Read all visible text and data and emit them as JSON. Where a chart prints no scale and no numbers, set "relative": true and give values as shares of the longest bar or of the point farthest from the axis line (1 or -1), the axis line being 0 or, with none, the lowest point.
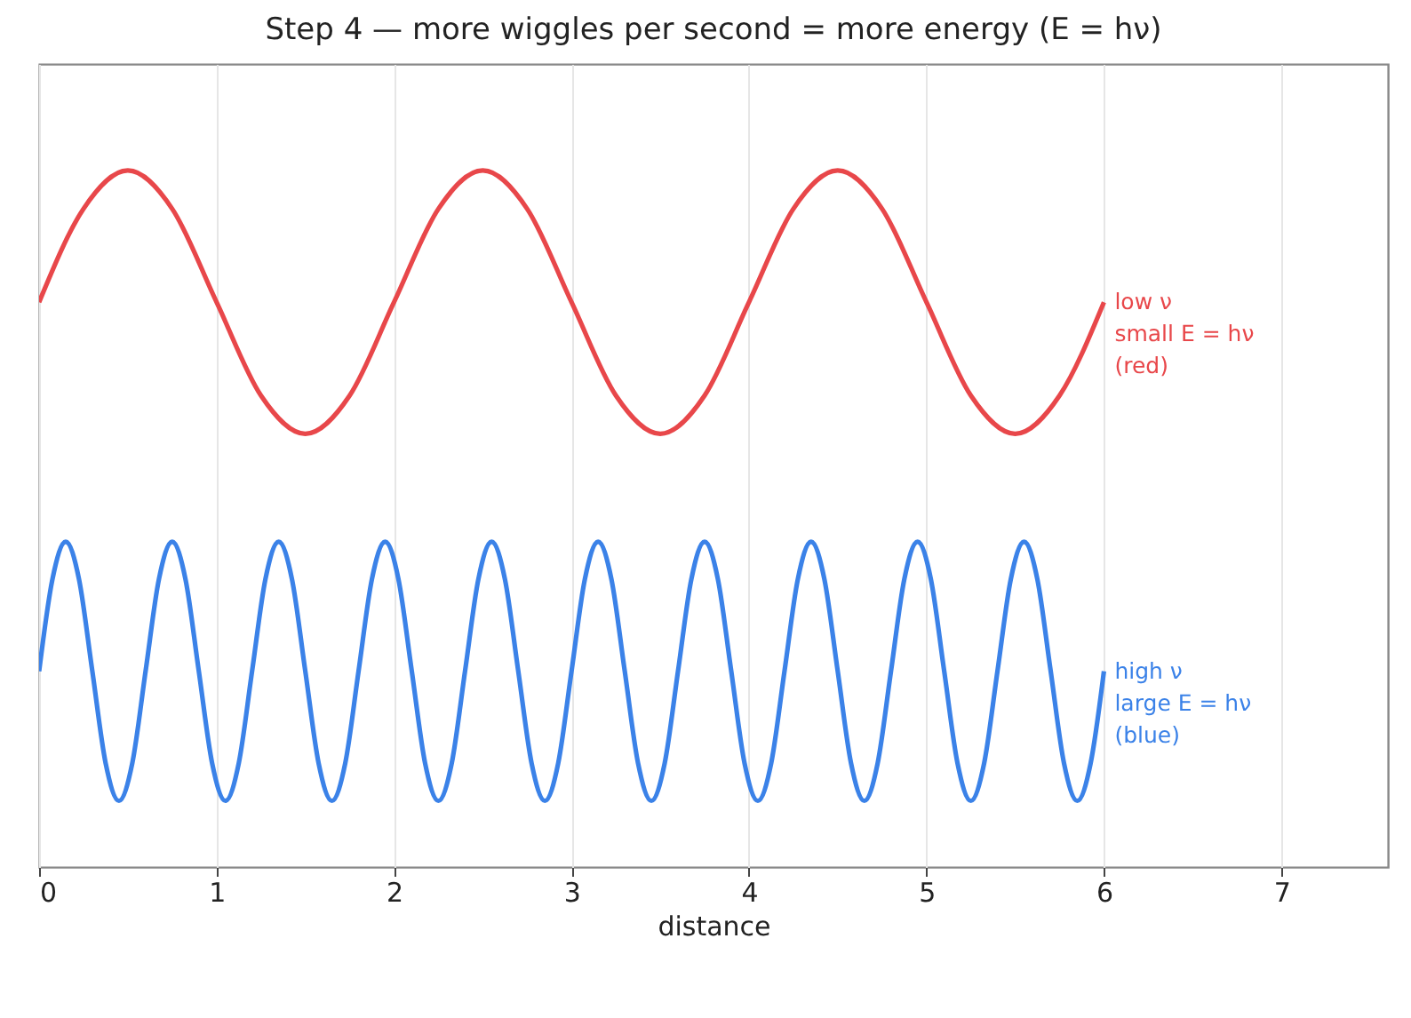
{
  "chart_data": {
    "type": "line",
    "title": "Step 4 — more wiggles per second = more energy (E = hν)",
    "xlabel": "distance",
    "relative": true,
    "xlim": [
      0,
      7.6
    ],
    "xticks": [
      0,
      1,
      2,
      3,
      4,
      5,
      6,
      7
    ],
    "grid": "x",
    "line_style": "solid",
    "series": [
      {
        "name": "low ν\nsmall E = hν\n(red)",
        "color": "#e8474a",
        "x": [
          0,
          0.25,
          0.5,
          0.75,
          1,
          1.25,
          1.5,
          1.75,
          2,
          2.25,
          2.5,
          2.75,
          3,
          3.25,
          3.5,
          3.75,
          4,
          4.25,
          4.5,
          4.75,
          5,
          5.25,
          5.5,
          5.75,
          6
        ],
        "values": [
          0.811,
          0.945,
          1.0,
          0.945,
          0.811,
          0.677,
          0.622,
          0.677,
          0.811,
          0.945,
          1.0,
          0.945,
          0.811,
          0.677,
          0.622,
          0.677,
          0.811,
          0.945,
          1.0,
          0.945,
          0.811,
          0.677,
          0.622,
          0.677,
          0.811
        ]
      },
      {
        "name": "high ν\nlarge E = hν\n(blue)",
        "color": "#3b82e8",
        "x": [
          0,
          0.075,
          0.15,
          0.225,
          0.3,
          0.375,
          0.45,
          0.525,
          0.6,
          0.675,
          0.75,
          0.825,
          0.9,
          0.975,
          1.05,
          1.125,
          1.2,
          1.275,
          1.35,
          1.425,
          1.5,
          1.575,
          1.65,
          1.725,
          1.8,
          1.875,
          1.95,
          2.025,
          2.1,
          2.175,
          2.25,
          2.325,
          2.4,
          2.475,
          2.55,
          2.625,
          2.7,
          2.775,
          2.85,
          2.925,
          3,
          3.075,
          3.15,
          3.225,
          3.3,
          3.375,
          3.45,
          3.525,
          3.6,
          3.675,
          3.75,
          3.825,
          3.9,
          3.975,
          4.05,
          4.125,
          4.2,
          4.275,
          4.35,
          4.425,
          4.5,
          4.575,
          4.65,
          4.725,
          4.8,
          4.875,
          4.95,
          5.025,
          5.1,
          5.175,
          5.25,
          5.325,
          5.4,
          5.475,
          5.55,
          5.625,
          5.7,
          5.775,
          5.85,
          5.925,
          6
        ],
        "values": [
          0.281,
          0.413,
          0.467,
          0.413,
          0.281,
          0.149,
          0.095,
          0.149,
          0.281,
          0.413,
          0.467,
          0.413,
          0.281,
          0.149,
          0.095,
          0.149,
          0.281,
          0.413,
          0.467,
          0.413,
          0.281,
          0.149,
          0.095,
          0.149,
          0.281,
          0.413,
          0.467,
          0.413,
          0.281,
          0.149,
          0.095,
          0.149,
          0.281,
          0.413,
          0.467,
          0.413,
          0.281,
          0.149,
          0.095,
          0.149,
          0.281,
          0.413,
          0.467,
          0.413,
          0.281,
          0.149,
          0.095,
          0.149,
          0.281,
          0.413,
          0.467,
          0.413,
          0.281,
          0.149,
          0.095,
          0.149,
          0.281,
          0.413,
          0.467,
          0.413,
          0.281,
          0.149,
          0.095,
          0.149,
          0.281,
          0.413,
          0.467,
          0.413,
          0.281,
          0.149,
          0.095,
          0.149,
          0.281,
          0.413,
          0.467,
          0.413,
          0.281,
          0.149,
          0.095,
          0.149,
          0.281
        ]
      }
    ]
  }
}
